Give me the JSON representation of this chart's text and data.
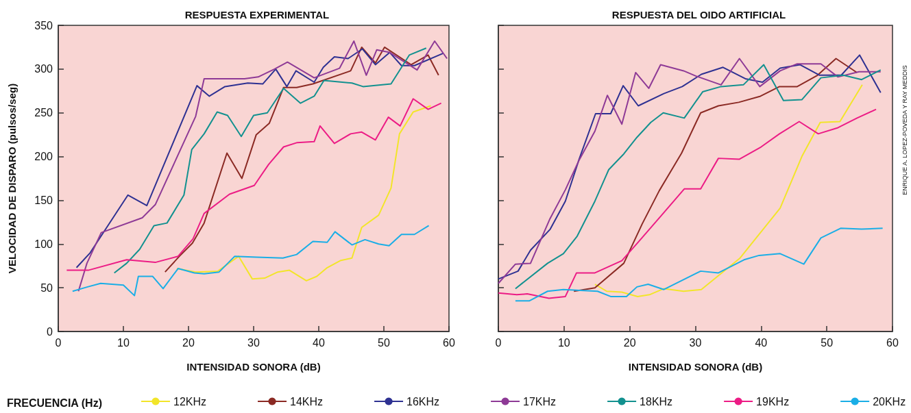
{
  "chart_data": [
    {
      "type": "line",
      "title": "RESPUESTA EXPERIMENTAL",
      "xlabel": "INTENSIDAD SONORA (dB)",
      "ylabel": "VELOCIDAD DE DISPARO (pulsos/seg)",
      "legend_title": "FRECUENCIA (Hz)",
      "legend": "bottom",
      "marker": "none",
      "xlim": [
        0,
        60
      ],
      "xticks": [
        0,
        10,
        20,
        30,
        40,
        50,
        60
      ],
      "ylim": [
        0,
        350
      ],
      "yticks": [
        0,
        50,
        100,
        150,
        200,
        250,
        300,
        350
      ],
      "series": [
        {
          "name": "12KHz",
          "color": "#f2e529",
          "x": [
            18.2,
            21.1,
            24.5,
            27.7,
            29.8,
            31.7,
            33.7,
            35.5,
            38.1,
            39.7,
            41.3,
            43.3,
            45.1,
            46.6,
            49.2,
            51.1,
            52.4,
            54.5,
            57.2
          ],
          "values": [
            72,
            68,
            69,
            86,
            60,
            61,
            68,
            70,
            58,
            63,
            73,
            81,
            84,
            119,
            133,
            164,
            226,
            251,
            258
          ]
        },
        {
          "name": "14KHz",
          "color": "#8b2a24",
          "x": [
            16.4,
            18.6,
            20.6,
            22.4,
            25.9,
            28.2,
            30.4,
            32.4,
            34.6,
            36.6,
            39.1,
            44.9,
            46.6,
            48.7,
            50.1,
            54.2,
            56.8,
            58.4
          ],
          "values": [
            68,
            86,
            101,
            124,
            204,
            175,
            225,
            238,
            279,
            279,
            283,
            298,
            325,
            307,
            325,
            305,
            316,
            293
          ]
        },
        {
          "name": "16KHz",
          "color": "#2e3192",
          "x": [
            2.8,
            4.9,
            10.7,
            13.6,
            21.3,
            23.2,
            25.6,
            29.1,
            31.4,
            33.4,
            35.1,
            36.5,
            39.3,
            40.7,
            42.4,
            44.5,
            46.7,
            48.7,
            50.9,
            52.7,
            54.7,
            59.1
          ],
          "values": [
            73,
            90,
            156,
            144,
            281,
            269,
            280,
            284,
            283,
            300,
            280,
            298,
            285,
            302,
            314,
            312,
            323,
            305,
            319,
            304,
            304,
            318
          ]
        },
        {
          "name": "17KHz",
          "color": "#8e3a96",
          "x": [
            3.1,
            4.4,
            6.6,
            12.9,
            14.9,
            21.1,
            22.4,
            28.6,
            30.7,
            33.2,
            35.2,
            39.3,
            43.2,
            45.4,
            47.3,
            48.9,
            50.9,
            55.1,
            57.8,
            59.7
          ],
          "values": [
            46,
            78,
            113,
            130,
            145,
            246,
            289,
            289,
            291,
            300,
            308,
            290,
            301,
            332,
            293,
            322,
            319,
            299,
            332,
            312
          ]
        },
        {
          "name": "18KHz",
          "color": "#12918f",
          "x": [
            8.6,
            10.5,
            12.5,
            14.7,
            16.7,
            19.3,
            20.5,
            22.4,
            24.4,
            26.0,
            28.1,
            30.0,
            32.1,
            34.6,
            37.2,
            39.3,
            40.8,
            45.1,
            46.8,
            51.1,
            53.9,
            56.5
          ],
          "values": [
            67,
            78,
            94,
            121,
            124,
            156,
            208,
            226,
            251,
            247,
            223,
            247,
            250,
            278,
            261,
            269,
            287,
            284,
            280,
            283,
            316,
            324
          ]
        },
        {
          "name": "19KHz",
          "color": "#ec1c85",
          "x": [
            1.3,
            4.6,
            10.5,
            14.9,
            18.4,
            20.7,
            22.4,
            26.3,
            30.1,
            32.3,
            34.6,
            36.7,
            39.3,
            40.2,
            42.4,
            44.9,
            46.6,
            48.7,
            50.7,
            52.5,
            54.5,
            56.8,
            58.8
          ],
          "values": [
            70,
            70,
            82,
            79,
            86,
            106,
            135,
            157,
            167,
            191,
            211,
            216,
            217,
            235,
            215,
            226,
            228,
            219,
            245,
            235,
            266,
            254,
            261
          ]
        },
        {
          "name": "20KHz",
          "color": "#1aaee6",
          "x": [
            2.2,
            4.5,
            6.5,
            10.0,
            11.7,
            12.3,
            14.5,
            16.1,
            18.4,
            20.9,
            22.4,
            24.7,
            27.1,
            30.5,
            34.5,
            36.6,
            39.1,
            41.3,
            42.5,
            45.1,
            47.1,
            49.2,
            50.8,
            52.7,
            54.7,
            56.9
          ],
          "values": [
            46,
            51,
            55,
            53,
            41,
            63,
            63,
            49,
            72,
            67,
            66,
            68,
            86,
            85,
            84,
            88,
            103,
            102,
            114,
            99,
            105,
            100,
            98,
            111,
            111,
            121
          ]
        }
      ]
    },
    {
      "type": "line",
      "title": "RESPUESTA DEL OIDO ARTIFICIAL",
      "xlabel": "INTENSIDAD SONORA (dB)",
      "marker": "none",
      "tick_labels": "x",
      "annotations": [
        "ENRIQUE A. LOPEZ-POVEDA Y RAY MEDDIS"
      ],
      "xlim": [
        0,
        60
      ],
      "xticks": [
        0,
        10,
        20,
        30,
        40,
        50,
        60
      ],
      "ylim": [
        0,
        350
      ],
      "yticks": [
        0,
        50,
        100,
        150,
        200,
        250,
        300,
        350
      ],
      "series": [
        {
          "color": "#f2e529",
          "x": [
            14.7,
            16.5,
            18.8,
            21.2,
            23.0,
            25.2,
            28.2,
            30.9,
            36.8,
            42.9,
            46.2,
            49.0,
            52.0,
            55.4
          ],
          "values": [
            54,
            46,
            45,
            40,
            42,
            49,
            46,
            48,
            84,
            141,
            200,
            239,
            240,
            282
          ]
        },
        {
          "color": "#8b2a24",
          "x": [
            11.5,
            14.7,
            19.1,
            21.9,
            24.5,
            27.9,
            30.1,
            30.8,
            33.5,
            36.6,
            39.9,
            42.8,
            45.5,
            48.6,
            51.4,
            54.6
          ],
          "values": [
            46,
            50,
            78,
            123,
            161,
            204,
            239,
            250,
            258,
            262,
            269,
            280,
            280,
            293,
            312,
            296
          ]
        },
        {
          "color": "#2e3192",
          "x": [
            0,
            3.0,
            4.9,
            7.9,
            10.2,
            12.3,
            14.8,
            17.1,
            19.0,
            21.3,
            25.2,
            28.0,
            30.9,
            34.2,
            37.6,
            40.2,
            42.9,
            45.9,
            48.9,
            52.2,
            55.0,
            58.2
          ],
          "values": [
            60,
            69,
            93,
            117,
            149,
            197,
            249,
            249,
            281,
            258,
            272,
            280,
            294,
            302,
            289,
            285,
            301,
            305,
            293,
            293,
            316,
            273
          ]
        },
        {
          "color": "#8e3a96",
          "x": [
            0,
            2.6,
            4.9,
            7.8,
            10.2,
            12.3,
            14.7,
            16.6,
            18.8,
            20.9,
            22.9,
            24.7,
            28.2,
            30.1,
            33.9,
            36.7,
            39.8,
            42.9,
            45.5,
            49.1,
            51.7,
            54.9,
            58.2
          ],
          "values": [
            55,
            77,
            78,
            128,
            162,
            196,
            229,
            270,
            237,
            296,
            278,
            305,
            298,
            292,
            282,
            312,
            280,
            298,
            306,
            306,
            291,
            297,
            297
          ]
        },
        {
          "color": "#12918f",
          "x": [
            2.6,
            7.5,
            9.9,
            12.0,
            14.7,
            16.8,
            19.1,
            21.1,
            23.2,
            25.1,
            28.3,
            31.1,
            33.9,
            37.3,
            40.4,
            43.4,
            46.2,
            49.1,
            52.5,
            55.3,
            58.2
          ],
          "values": [
            49,
            78,
            89,
            109,
            149,
            185,
            203,
            222,
            239,
            250,
            244,
            274,
            280,
            282,
            305,
            264,
            265,
            290,
            293,
            288,
            299
          ]
        },
        {
          "color": "#ec1c85",
          "x": [
            0,
            2.8,
            4.4,
            7.7,
            10.2,
            11.9,
            14.7,
            18.8,
            21.4,
            25.2,
            28.3,
            30.8,
            33.5,
            36.7,
            40.0,
            42.8,
            45.8,
            48.7,
            51.7,
            54.6,
            57.5
          ],
          "values": [
            44,
            42,
            43,
            38,
            40,
            67,
            67,
            81,
            103,
            136,
            163,
            163,
            198,
            197,
            211,
            226,
            240,
            226,
            233,
            244,
            254
          ]
        },
        {
          "color": "#1aaee6",
          "x": [
            2.6,
            4.7,
            7.5,
            9.9,
            15.1,
            17.1,
            19.5,
            21.1,
            22.8,
            25.2,
            30.8,
            33.5,
            37.4,
            39.7,
            42.9,
            46.5,
            49.1,
            52.1,
            55.3,
            58.5
          ],
          "values": [
            35,
            35,
            46,
            48,
            46,
            40,
            40,
            51,
            54,
            48,
            69,
            67,
            82,
            87,
            89,
            77,
            107,
            118,
            117,
            118
          ]
        }
      ]
    }
  ]
}
